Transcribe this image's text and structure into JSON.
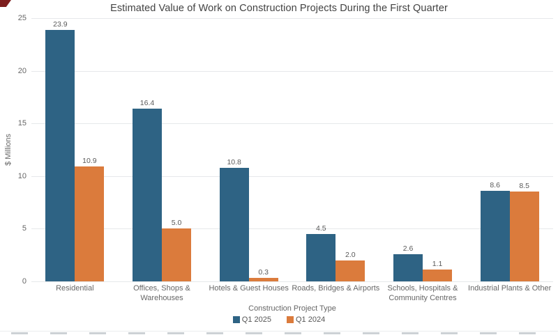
{
  "chart_data": {
    "type": "bar",
    "title": "Estimated Value of Work on Construction Projects During the First Quarter",
    "xlabel": "Construction Project Type",
    "ylabel": "$ Millions",
    "categories": [
      "Residential",
      "Offices, Shops & Warehouses",
      "Hotels & Guest Houses",
      "Roads, Bridges & Airports",
      "Schools, Hospitals & Community Centres",
      "Industrial Plants & Other"
    ],
    "series": [
      {
        "name": "Q1 2025",
        "color": "#2E6384",
        "values": [
          23.9,
          16.4,
          10.8,
          4.5,
          2.6,
          8.6
        ]
      },
      {
        "name": "Q1 2024",
        "color": "#DB7B3C",
        "values": [
          10.9,
          5.0,
          0.3,
          2.0,
          1.1,
          8.5
        ]
      }
    ],
    "ylim": [
      0,
      25
    ],
    "yticks": [
      0,
      5,
      10,
      15,
      20,
      25
    ],
    "grid": true,
    "legend_position": "bottom",
    "value_labels": true,
    "grid_color": "#e6e8ea"
  }
}
